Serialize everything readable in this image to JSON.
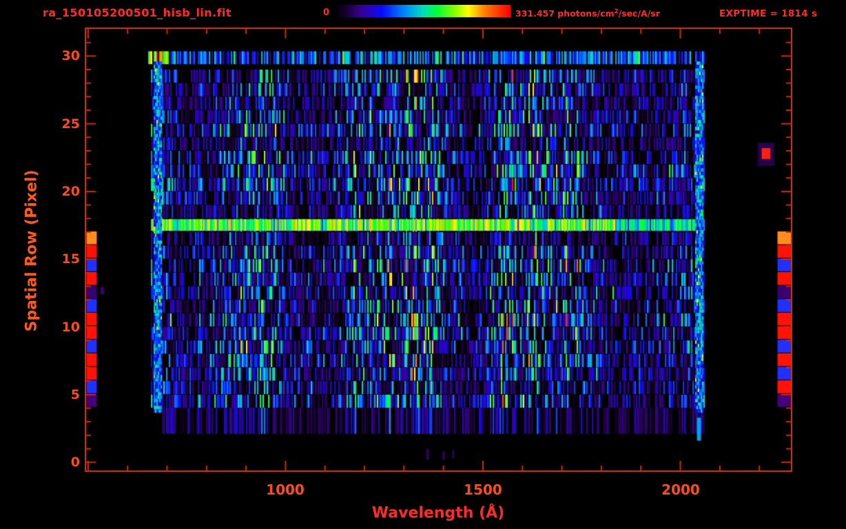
{
  "colors": {
    "background": "#000000",
    "text_red": "#ff2a2a",
    "axis_orange": "#ff5a1a",
    "tick_text": "#ff4a1a",
    "frame": "#cf2d0a"
  },
  "header": {
    "title": "ra_150105200501_hisb_lin.fit",
    "colorbar_min": "0",
    "colorbar_max_value": "331.457",
    "colorbar_units_prefix": "photons/cm",
    "colorbar_units_sup": "2",
    "colorbar_units_suffix": "/sec/A/sr",
    "exptime": "EXPTIME = 1814 s"
  },
  "chart_data": {
    "type": "heatmap",
    "title": "ra_150105200501_hisb_lin.fit",
    "xlabel": "Wavelength (Å)",
    "ylabel": "Spatial Row (Pixel)",
    "xlim": [
      495,
      2280
    ],
    "ylim": [
      -0.6,
      32
    ],
    "x_ticks": [
      "1000",
      "1500",
      "2000"
    ],
    "x_tick_values": [
      1000,
      1500,
      2000
    ],
    "x_minor_tick_step": 100,
    "y_ticks": [
      "0",
      "5",
      "10",
      "15",
      "20",
      "25",
      "30"
    ],
    "y_tick_values": [
      0,
      5,
      10,
      15,
      20,
      25,
      30
    ],
    "y_minor_tick_step": 1,
    "colorbar": {
      "min": 0,
      "max": 331.457,
      "units": "photons/cm2/sec/A/sr",
      "colormap": "rainbow-black-purple-blue-green-yellow-red",
      "position": "top"
    },
    "exposure_time_s": 1814,
    "features": {
      "noise_seed": 20150105,
      "data_wavelength_range": [
        660,
        2060
      ],
      "data_row_range": [
        4,
        29
      ],
      "faint_bottom_rows": [
        2.1,
        4.1
      ],
      "bright_spectrum_rows": [
        17.1,
        17.95
      ],
      "bright_top_rows": [
        29.4,
        30.35
      ],
      "bright_left_edge_wavelengths": [
        666,
        684
      ],
      "bright_right_edge_wavelengths": [
        2038,
        2058
      ],
      "extra_marks": [
        {
          "wavelength": [
            2042,
            2052
          ],
          "rows": [
            1.6,
            3.3
          ],
          "color": "#00a2e8"
        },
        {
          "wavelength": [
            531,
            540
          ],
          "rows": [
            12.4,
            12.95
          ],
          "color": "#3c0066"
        },
        {
          "wavelength": [
            1356,
            1363
          ],
          "rows": [
            0.2,
            1.0
          ],
          "color": "#2d0055"
        },
        {
          "wavelength": [
            1397,
            1404
          ],
          "rows": [
            0.2,
            0.8
          ],
          "color": "#2d0055"
        },
        {
          "wavelength": [
            1422,
            1427
          ],
          "rows": [
            0.3,
            0.9
          ],
          "color": "#2d0055"
        }
      ]
    },
    "edge_strips": {
      "row_top": 17.05,
      "left_wavelength_range": [
        496,
        522
      ],
      "right_wavelength_range": [
        2246,
        2280
      ],
      "left_colors": [
        "#ff8c1e",
        "#ff1208",
        "#2031ff",
        "#ff1208",
        "#3a0070",
        "#2031ff",
        "#ff1208",
        "#ff1208",
        "#2031ff",
        "#ff1208",
        "#ff1208",
        "#2031ff",
        "#46007a"
      ],
      "right_colors": [
        "#ff8c1e",
        "#ff1208",
        "#2031ff",
        "#ff1208",
        "#3a0070",
        "#2031ff",
        "#ff1208",
        "#ff1208",
        "#2031ff",
        "#ff1208",
        "#2031ff",
        "#ff1208",
        "#46007a"
      ],
      "right_spot": {
        "halo_wavelength": [
          2196,
          2238
        ],
        "halo_rows": [
          21.9,
          23.6
        ],
        "halo_color": "#26004a",
        "core_wavelength": [
          2206,
          2228
        ],
        "core_rows": [
          22.4,
          23.2
        ],
        "core_color": "#ff2012"
      }
    }
  }
}
